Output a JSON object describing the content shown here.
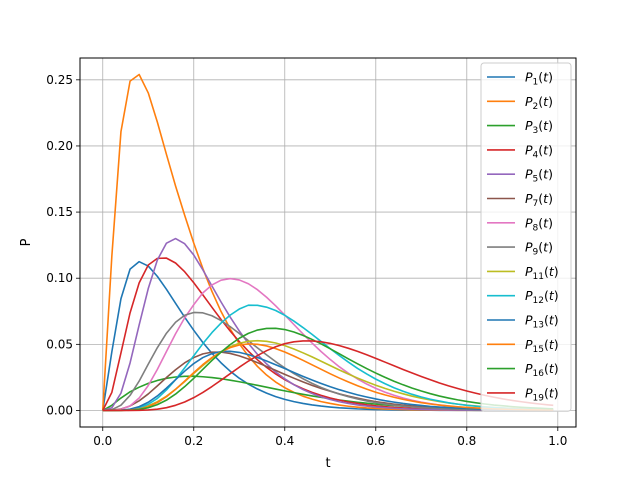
{
  "chart_data": {
    "type": "line",
    "title": "",
    "xlabel": "t",
    "ylabel": "P",
    "xlim": [
      -0.05,
      1.04
    ],
    "ylim": [
      -0.0125,
      0.2665
    ],
    "x_ticks": [
      0.0,
      0.2,
      0.4,
      0.6,
      0.8,
      1.0
    ],
    "x_tick_labels": [
      "0.0",
      "0.2",
      "0.4",
      "0.6",
      "0.8",
      "1.0"
    ],
    "y_ticks": [
      0.0,
      0.05,
      0.1,
      0.15,
      0.2,
      0.25
    ],
    "y_tick_labels": [
      "0.00",
      "0.05",
      "0.10",
      "0.15",
      "0.20",
      "0.25"
    ],
    "grid": true,
    "legend_position": "top-right",
    "x": [
      0.0,
      0.02,
      0.04,
      0.06,
      0.08,
      0.1,
      0.12,
      0.14,
      0.16,
      0.18,
      0.2,
      0.22,
      0.24,
      0.26,
      0.28,
      0.3,
      0.32,
      0.34,
      0.36,
      0.38,
      0.4,
      0.42,
      0.44,
      0.46,
      0.48,
      0.5,
      0.52,
      0.54,
      0.56,
      0.58,
      0.6,
      0.62,
      0.64,
      0.66,
      0.68,
      0.7,
      0.72,
      0.74,
      0.76,
      0.78,
      0.8,
      0.82,
      0.84,
      0.86,
      0.88,
      0.9,
      0.92,
      0.94,
      0.96,
      0.98,
      0.99
    ],
    "series": [
      {
        "name": "P",
        "sub": "1",
        "color": "#1f77b4",
        "values": [
          0,
          0.0444,
          0.0845,
          0.1069,
          0.1125,
          0.1092,
          0.1014,
          0.0916,
          0.081,
          0.0705,
          0.0606,
          0.0514,
          0.0432,
          0.036,
          0.0297,
          0.0244,
          0.0199,
          0.0162,
          0.0131,
          0.0105,
          0.0084,
          0.0067,
          0.0053,
          0.0042,
          0.0033,
          0.0026,
          0.002,
          0.0016,
          0.0012,
          0.001,
          0.0007,
          0.0006,
          0.0004,
          0.0003,
          0.0003,
          0.0002,
          0.0002,
          0.0001,
          0.0001,
          0.0001,
          0.0001,
          0,
          0,
          0,
          0,
          0,
          0,
          0,
          0,
          0,
          0
        ]
      },
      {
        "name": "P",
        "sub": "2",
        "color": "#ff7f0e",
        "values": [
          0,
          0.1168,
          0.2108,
          0.249,
          0.254,
          0.2401,
          0.218,
          0.1936,
          0.1697,
          0.1476,
          0.1265,
          0.1073,
          0.09,
          0.0748,
          0.0617,
          0.0505,
          0.0411,
          0.0333,
          0.0268,
          0.0215,
          0.0172,
          0.0137,
          0.0108,
          0.0086,
          0.0067,
          0.0053,
          0.0041,
          0.0032,
          0.0025,
          0.0019,
          0.0015,
          0.0011,
          0.0009,
          0.0007,
          0.0005,
          0.0004,
          0.0003,
          0.0002,
          0.0002,
          0.0001,
          0.0001,
          0.0001,
          0.0001,
          0,
          0,
          0,
          0,
          0,
          0,
          0,
          0
        ]
      },
      {
        "name": "P",
        "sub": "3",
        "color": "#2ca02c",
        "values": [
          0,
          0.0039,
          0.0094,
          0.0141,
          0.0176,
          0.0205,
          0.0227,
          0.0243,
          0.0253,
          0.0258,
          0.0259,
          0.0255,
          0.0249,
          0.024,
          0.0229,
          0.0217,
          0.0204,
          0.019,
          0.0176,
          0.0162,
          0.0148,
          0.0135,
          0.0122,
          0.011,
          0.0099,
          0.0089,
          0.0079,
          0.007,
          0.0062,
          0.0055,
          0.0048,
          0.0042,
          0.0037,
          0.0032,
          0.0028,
          0.0024,
          0.0021,
          0.0018,
          0.0016,
          0.0013,
          0.0011,
          0.001,
          0.0008,
          0.0007,
          0.0006,
          0.0005,
          0.0004,
          0.0004,
          0.0003,
          0.0003,
          0.0002
        ]
      },
      {
        "name": "P",
        "sub": "4",
        "color": "#d62728",
        "values": [
          0,
          0.0137,
          0.0435,
          0.0738,
          0.0965,
          0.11,
          0.115,
          0.1152,
          0.1115,
          0.1049,
          0.0966,
          0.0874,
          0.078,
          0.0688,
          0.0601,
          0.0521,
          0.0448,
          0.0383,
          0.0326,
          0.0276,
          0.0233,
          0.0196,
          0.0164,
          0.0137,
          0.0114,
          0.0094,
          0.0078,
          0.0064,
          0.0053,
          0.0043,
          0.0035,
          0.0029,
          0.0023,
          0.0019,
          0.0015,
          0.0012,
          0.001,
          0.0008,
          0.0006,
          0.0005,
          0.0004,
          0.0003,
          0.0003,
          0.0002,
          0.0002,
          0.0001,
          0.0001,
          0.0001,
          0.0001,
          0,
          0
        ]
      },
      {
        "name": "P",
        "sub": "5",
        "color": "#9467bd",
        "values": [
          0,
          0.002,
          0.0131,
          0.0359,
          0.0647,
          0.0922,
          0.1138,
          0.1265,
          0.13,
          0.1261,
          0.1175,
          0.1063,
          0.0941,
          0.082,
          0.0706,
          0.0601,
          0.0507,
          0.0424,
          0.0352,
          0.0291,
          0.0239,
          0.0195,
          0.0158,
          0.0128,
          0.0103,
          0.0083,
          0.0066,
          0.0053,
          0.0042,
          0.0033,
          0.0026,
          0.0021,
          0.0016,
          0.0013,
          0.001,
          0.0008,
          0.0006,
          0.0005,
          0.0004,
          0.0003,
          0.0002,
          0.0002,
          0.0001,
          0.0001,
          0.0001,
          0.0001,
          0,
          0,
          0,
          0,
          0
        ]
      },
      {
        "name": "P",
        "sub": "7",
        "color": "#8c564b",
        "values": [
          0,
          0.0002,
          0.0011,
          0.0034,
          0.0073,
          0.0125,
          0.0186,
          0.0249,
          0.0308,
          0.036,
          0.04,
          0.0428,
          0.0441,
          0.0441,
          0.0431,
          0.0413,
          0.0389,
          0.0362,
          0.0333,
          0.0303,
          0.0273,
          0.0244,
          0.0216,
          0.019,
          0.0166,
          0.0145,
          0.0125,
          0.0108,
          0.0093,
          0.0079,
          0.0067,
          0.0057,
          0.0048,
          0.004,
          0.0034,
          0.0028,
          0.0023,
          0.0019,
          0.0016,
          0.0013,
          0.0011,
          0.0009,
          0.0007,
          0.0006,
          0.0005,
          0.0004,
          0.0003,
          0.0003,
          0.0002,
          0.0002,
          0.0002
        ]
      },
      {
        "name": "P",
        "sub": "8",
        "color": "#e377c2",
        "values": [
          0,
          0.0001,
          0.0008,
          0.0035,
          0.0094,
          0.0189,
          0.0311,
          0.0446,
          0.058,
          0.07,
          0.08,
          0.0889,
          0.0949,
          0.0985,
          0.0997,
          0.0987,
          0.0958,
          0.0913,
          0.0856,
          0.0791,
          0.0721,
          0.065,
          0.0579,
          0.051,
          0.0445,
          0.0385,
          0.033,
          0.0281,
          0.0238,
          0.02,
          0.0167,
          0.0139,
          0.0115,
          0.0094,
          0.0077,
          0.0063,
          0.0051,
          0.0041,
          0.0033,
          0.0026,
          0.0021,
          0.0017,
          0.0013,
          0.001,
          0.0008,
          0.0006,
          0.0005,
          0.0004,
          0.0003,
          0.0002,
          0.0002
        ]
      },
      {
        "name": "P",
        "sub": "9",
        "color": "#7f7f7f",
        "values": [
          0,
          0.0006,
          0.004,
          0.0114,
          0.0222,
          0.035,
          0.0475,
          0.0584,
          0.0667,
          0.072,
          0.0741,
          0.0738,
          0.0716,
          0.068,
          0.0634,
          0.0582,
          0.0528,
          0.0473,
          0.042,
          0.0369,
          0.0322,
          0.0279,
          0.024,
          0.0205,
          0.0174,
          0.0147,
          0.0124,
          0.0104,
          0.0087,
          0.0072,
          0.006,
          0.0049,
          0.004,
          0.0033,
          0.0027,
          0.0022,
          0.0018,
          0.0014,
          0.0012,
          0.0009,
          0.0008,
          0.0006,
          0.0005,
          0.0004,
          0.0003,
          0.0002,
          0.0002,
          0.0002,
          0.0001,
          0.0001,
          0.0001
        ]
      },
      {
        "name": "P",
        "sub": "11",
        "color": "#bcbd22",
        "values": [
          0,
          0,
          0.0001,
          0.0005,
          0.0015,
          0.0035,
          0.0066,
          0.0108,
          0.016,
          0.0218,
          0.028,
          0.034,
          0.0396,
          0.0444,
          0.0482,
          0.0508,
          0.0523,
          0.0528,
          0.0523,
          0.051,
          0.049,
          0.0465,
          0.0436,
          0.0405,
          0.0372,
          0.0339,
          0.0306,
          0.0275,
          0.0245,
          0.0217,
          0.0191,
          0.0167,
          0.0145,
          0.0126,
          0.0108,
          0.0093,
          0.0079,
          0.0067,
          0.0057,
          0.0048,
          0.004,
          0.0034,
          0.0028,
          0.0023,
          0.0019,
          0.0016,
          0.0013,
          0.0011,
          0.0009,
          0.0007,
          0.0006
        ]
      },
      {
        "name": "P",
        "sub": "12",
        "color": "#17becf",
        "values": [
          0,
          0,
          0.0001,
          0.0006,
          0.002,
          0.0047,
          0.0091,
          0.0155,
          0.0233,
          0.0322,
          0.0414,
          0.0505,
          0.0589,
          0.0661,
          0.0721,
          0.0767,
          0.0796,
          0.0795,
          0.0781,
          0.0756,
          0.072,
          0.0676,
          0.0627,
          0.0575,
          0.0521,
          0.0467,
          0.0415,
          0.0365,
          0.0318,
          0.0276,
          0.0237,
          0.0203,
          0.0172,
          0.0145,
          0.0122,
          0.0102,
          0.0085,
          0.0071,
          0.0058,
          0.0048,
          0.0039,
          0.0032,
          0.0026,
          0.0021,
          0.0017,
          0.0014,
          0.0011,
          0.0009,
          0.0007,
          0.0006,
          0.0005
        ]
      },
      {
        "name": "P",
        "sub": "13",
        "color": "#1f77b4",
        "values": [
          0,
          0,
          0.0002,
          0.001,
          0.0029,
          0.0062,
          0.011,
          0.0169,
          0.0233,
          0.0297,
          0.0355,
          0.04,
          0.043,
          0.0445,
          0.0447,
          0.0439,
          0.0422,
          0.04,
          0.0374,
          0.0346,
          0.0317,
          0.0287,
          0.0258,
          0.023,
          0.0204,
          0.0179,
          0.0157,
          0.0137,
          0.0118,
          0.0102,
          0.0087,
          0.0074,
          0.0063,
          0.0053,
          0.0045,
          0.0038,
          0.0031,
          0.0026,
          0.0022,
          0.0018,
          0.0015,
          0.0012,
          0.001,
          0.0008,
          0.0007,
          0.0005,
          0.0004,
          0.0004,
          0.0003,
          0.0002,
          0.0002
        ]
      },
      {
        "name": "P",
        "sub": "15",
        "color": "#ff7f0e",
        "values": [
          0,
          0,
          0.0001,
          0.0003,
          0.0011,
          0.0029,
          0.006,
          0.0104,
          0.016,
          0.0222,
          0.0286,
          0.0347,
          0.04,
          0.0443,
          0.0475,
          0.0495,
          0.0503,
          0.05,
          0.0488,
          0.0468,
          0.0442,
          0.0412,
          0.0379,
          0.0345,
          0.0311,
          0.0277,
          0.0245,
          0.0215,
          0.0187,
          0.0161,
          0.0138,
          0.0118,
          0.01,
          0.0084,
          0.0071,
          0.0059,
          0.0049,
          0.0041,
          0.0034,
          0.0028,
          0.0023,
          0.0019,
          0.0015,
          0.0012,
          0.001,
          0.0008,
          0.0007,
          0.0005,
          0.0004,
          0.0003,
          0.0003
        ]
      },
      {
        "name": "P",
        "sub": "16",
        "color": "#2ca02c",
        "values": [
          0,
          0,
          0,
          0.0002,
          0.0008,
          0.0021,
          0.0044,
          0.0078,
          0.0124,
          0.018,
          0.0243,
          0.0311,
          0.0378,
          0.0441,
          0.0498,
          0.0546,
          0.0583,
          0.0608,
          0.062,
          0.0621,
          0.0612,
          0.0593,
          0.0568,
          0.0537,
          0.0503,
          0.0466,
          0.0428,
          0.039,
          0.0353,
          0.0317,
          0.0283,
          0.0251,
          0.0221,
          0.0194,
          0.0169,
          0.0147,
          0.0127,
          0.0109,
          0.0094,
          0.008,
          0.0068,
          0.0058,
          0.0049,
          0.0041,
          0.0035,
          0.0029,
          0.0024,
          0.002,
          0.0017,
          0.0014,
          0.0013
        ]
      },
      {
        "name": "P",
        "sub": "19",
        "color": "#d62728",
        "values": [
          0,
          0,
          0,
          0,
          0.0001,
          0.0004,
          0.001,
          0.0021,
          0.0039,
          0.0064,
          0.0097,
          0.0136,
          0.0181,
          0.0229,
          0.0278,
          0.0327,
          0.0373,
          0.0415,
          0.0452,
          0.0482,
          0.0505,
          0.0519,
          0.0526,
          0.0526,
          0.0519,
          0.0507,
          0.049,
          0.047,
          0.0447,
          0.0421,
          0.0394,
          0.0366,
          0.0338,
          0.031,
          0.0283,
          0.0257,
          0.0232,
          0.0208,
          0.0186,
          0.0166,
          0.0147,
          0.013,
          0.0114,
          0.01,
          0.0087,
          0.0076,
          0.0066,
          0.0057,
          0.0049,
          0.0042,
          0.0039
        ]
      }
    ]
  }
}
